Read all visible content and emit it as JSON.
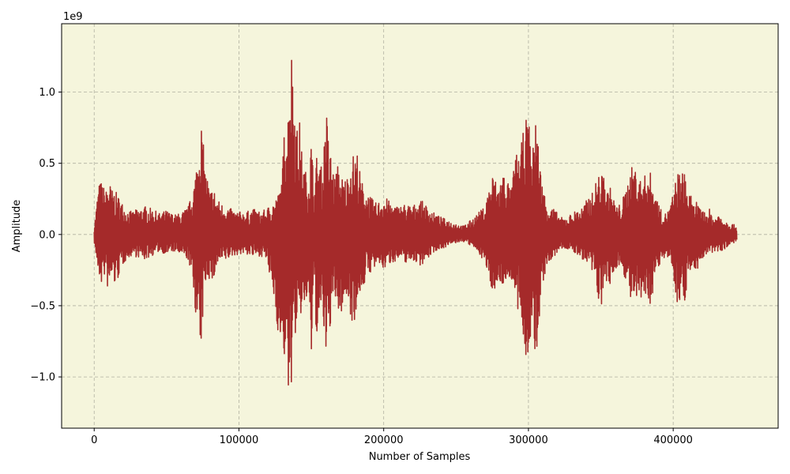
{
  "chart_data": {
    "type": "line",
    "title": "",
    "xlabel": "Number of Samples",
    "ylabel": "Amplitude",
    "y_scale_label": "1e9",
    "x_range": [
      -22500,
      472500
    ],
    "y_range": [
      -1.36,
      1.48
    ],
    "x_ticks": [
      0,
      100000,
      200000,
      300000,
      400000
    ],
    "x_tick_labels": [
      "0",
      "100000",
      "200000",
      "300000",
      "400000"
    ],
    "y_ticks": [
      -1.0,
      -0.5,
      0.0,
      0.5,
      1.0
    ],
    "y_tick_labels": [
      "−1.0",
      "−0.5",
      "0.0",
      "0.5",
      "1.0"
    ],
    "grid": true,
    "legend": "none",
    "colors": {
      "background": "#f5f5dc",
      "line": "#a52a2a",
      "grid": "#b0b0a0"
    },
    "series": [
      {
        "name": "",
        "sample_count": 450000,
        "envelope_samples": [
          0,
          3000,
          5000,
          8000,
          10000,
          12000,
          15000,
          18000,
          22000,
          26000,
          30000,
          35000,
          40000,
          45000,
          50000,
          55000,
          60000,
          65000,
          68000,
          70000,
          72000,
          73000,
          74000,
          75000,
          76000,
          77000,
          78000,
          80000,
          82000,
          85000,
          88000,
          92000,
          96000,
          100000,
          105000,
          110000,
          115000,
          119000,
          122000,
          125000,
          128000,
          130000,
          132000,
          134000,
          135500,
          137000,
          138500,
          140000,
          142000,
          144000,
          146000,
          148000,
          150000,
          152000,
          154000,
          156000,
          158000,
          160000,
          162000,
          164000,
          166000,
          168000,
          170000,
          172000,
          174000,
          176000,
          178000,
          180000,
          182000,
          184000,
          186000,
          188000,
          190000,
          192000,
          195000,
          198000,
          200000,
          205000,
          210000,
          215000,
          220000,
          225000,
          230000,
          235000,
          240000,
          245000,
          250000,
          255000,
          260000,
          265000,
          270000,
          273000,
          276000,
          278000,
          280000,
          283000,
          286000,
          288000,
          290000,
          292000,
          294000,
          296000,
          298000,
          300000,
          301000,
          302000,
          303000,
          304000,
          305000,
          306000,
          307000,
          308000,
          309000,
          310000,
          312000,
          315000,
          318000,
          322000,
          326000,
          330000,
          334000,
          338000,
          342000,
          345000,
          348000,
          350000,
          352000,
          354000,
          356000,
          358000,
          360000,
          362000,
          365000,
          368000,
          370000,
          373000,
          376000,
          378000,
          380000,
          382000,
          384000,
          386000,
          388000,
          390000,
          392000,
          395000,
          398000,
          400000,
          403000,
          406000,
          408000,
          410000,
          412000,
          414000,
          416000,
          418000,
          420000,
          422000,
          425000,
          428000,
          432000,
          436000,
          440000,
          444000,
          448000,
          450000
        ],
        "envelope_upper": [
          0.05,
          0.35,
          0.38,
          0.3,
          0.4,
          0.32,
          0.3,
          0.25,
          0.18,
          0.16,
          0.18,
          0.2,
          0.18,
          0.15,
          0.17,
          0.14,
          0.15,
          0.2,
          0.3,
          0.45,
          0.6,
          0.85,
          0.8,
          0.7,
          0.55,
          0.45,
          0.42,
          0.3,
          0.35,
          0.25,
          0.22,
          0.2,
          0.17,
          0.16,
          0.16,
          0.18,
          0.16,
          0.18,
          0.22,
          0.25,
          0.3,
          0.45,
          0.9,
          0.9,
          1.35,
          1.3,
          1.0,
          0.75,
          0.8,
          0.5,
          0.45,
          0.4,
          0.7,
          0.3,
          0.6,
          0.5,
          0.45,
          0.95,
          0.65,
          0.55,
          0.4,
          0.5,
          0.42,
          0.4,
          0.4,
          0.45,
          0.58,
          0.55,
          0.6,
          0.4,
          0.35,
          0.3,
          0.28,
          0.25,
          0.22,
          0.25,
          0.28,
          0.22,
          0.2,
          0.22,
          0.2,
          0.25,
          0.2,
          0.15,
          0.12,
          0.1,
          0.08,
          0.06,
          0.1,
          0.15,
          0.2,
          0.35,
          0.45,
          0.35,
          0.38,
          0.45,
          0.38,
          0.3,
          0.5,
          0.58,
          0.55,
          0.7,
          0.8,
          0.85,
          0.7,
          0.6,
          0.55,
          0.85,
          0.92,
          0.8,
          0.6,
          0.5,
          0.4,
          0.35,
          0.25,
          0.2,
          0.18,
          0.12,
          0.12,
          0.15,
          0.18,
          0.2,
          0.28,
          0.3,
          0.45,
          0.4,
          0.45,
          0.3,
          0.35,
          0.28,
          0.22,
          0.2,
          0.25,
          0.35,
          0.45,
          0.5,
          0.42,
          0.38,
          0.4,
          0.48,
          0.45,
          0.35,
          0.3,
          0.22,
          0.16,
          0.15,
          0.2,
          0.3,
          0.45,
          0.42,
          0.5,
          0.3,
          0.28,
          0.2,
          0.25,
          0.18,
          0.2,
          0.15,
          0.18,
          0.12,
          0.15,
          0.1,
          0.08,
          0.06
        ],
        "envelope_lower": [
          -0.05,
          -0.3,
          -0.35,
          -0.28,
          -0.45,
          -0.3,
          -0.38,
          -0.25,
          -0.18,
          -0.15,
          -0.16,
          -0.18,
          -0.15,
          -0.12,
          -0.14,
          -0.12,
          -0.15,
          -0.18,
          -0.35,
          -0.55,
          -0.7,
          -0.95,
          -0.8,
          -0.6,
          -0.4,
          -0.35,
          -0.3,
          -0.32,
          -0.35,
          -0.22,
          -0.2,
          -0.18,
          -0.15,
          -0.14,
          -0.14,
          -0.16,
          -0.15,
          -0.18,
          -0.35,
          -0.5,
          -0.8,
          -0.85,
          -0.9,
          -1.2,
          -1.15,
          -0.95,
          -0.7,
          -0.75,
          -0.6,
          -0.55,
          -0.5,
          -0.45,
          -0.9,
          -0.35,
          -0.85,
          -0.6,
          -0.55,
          -1.02,
          -0.7,
          -0.6,
          -0.45,
          -0.55,
          -0.6,
          -0.5,
          -0.45,
          -0.5,
          -0.62,
          -0.6,
          -0.5,
          -0.4,
          -0.38,
          -0.3,
          -0.28,
          -0.25,
          -0.24,
          -0.22,
          -0.25,
          -0.2,
          -0.18,
          -0.2,
          -0.18,
          -0.22,
          -0.18,
          -0.12,
          -0.1,
          -0.08,
          -0.06,
          -0.05,
          -0.08,
          -0.12,
          -0.2,
          -0.35,
          -0.4,
          -0.35,
          -0.38,
          -0.35,
          -0.32,
          -0.3,
          -0.45,
          -0.55,
          -0.6,
          -0.75,
          -0.85,
          -0.88,
          -0.8,
          -0.7,
          -0.6,
          -0.95,
          -1.0,
          -0.8,
          -0.65,
          -0.55,
          -0.45,
          -0.35,
          -0.25,
          -0.2,
          -0.16,
          -0.1,
          -0.1,
          -0.12,
          -0.15,
          -0.18,
          -0.25,
          -0.3,
          -0.45,
          -0.5,
          -0.52,
          -0.35,
          -0.4,
          -0.3,
          -0.25,
          -0.22,
          -0.25,
          -0.35,
          -0.45,
          -0.52,
          -0.5,
          -0.48,
          -0.45,
          -0.52,
          -0.5,
          -0.4,
          -0.3,
          -0.25,
          -0.18,
          -0.15,
          -0.2,
          -0.28,
          -0.5,
          -0.45,
          -0.48,
          -0.3,
          -0.3,
          -0.22,
          -0.28,
          -0.2,
          -0.18,
          -0.15,
          -0.16,
          -0.12,
          -0.12,
          -0.1,
          -0.07,
          -0.05
        ]
      }
    ]
  }
}
